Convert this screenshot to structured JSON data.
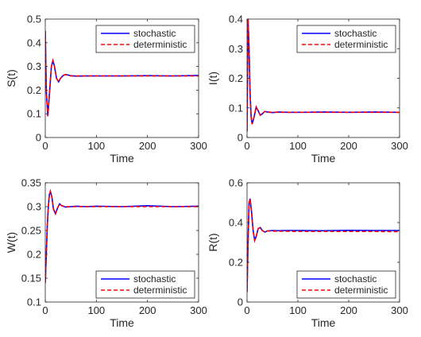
{
  "chart_data": [
    {
      "type": "line",
      "xlabel": "Time",
      "ylabel": "S(t)",
      "xlim": [
        0,
        300
      ],
      "ylim": [
        0,
        0.5
      ],
      "xticks": [
        0,
        100,
        200,
        300
      ],
      "yticks": [
        0,
        0.1,
        0.2,
        0.3,
        0.4,
        0.5
      ],
      "legend_position": "top-right",
      "series": [
        {
          "name": "stochastic",
          "color": "#0000ff",
          "style": "solid",
          "x": [
            0,
            2,
            5,
            8,
            12,
            15,
            18,
            22,
            26,
            30,
            35,
            40,
            50,
            60,
            80,
            100,
            150,
            200,
            250,
            300
          ],
          "y": [
            0.45,
            0.2,
            0.09,
            0.18,
            0.3,
            0.325,
            0.3,
            0.25,
            0.235,
            0.25,
            0.262,
            0.266,
            0.261,
            0.259,
            0.26,
            0.26,
            0.26,
            0.261,
            0.26,
            0.262
          ]
        },
        {
          "name": "deterministic",
          "color": "#ff0000",
          "style": "dashed",
          "x": [
            0,
            2,
            5,
            8,
            12,
            15,
            18,
            22,
            26,
            30,
            35,
            40,
            50,
            60,
            80,
            100,
            150,
            200,
            250,
            300
          ],
          "y": [
            0.45,
            0.2,
            0.09,
            0.18,
            0.3,
            0.325,
            0.3,
            0.25,
            0.235,
            0.25,
            0.262,
            0.266,
            0.26,
            0.26,
            0.26,
            0.26,
            0.26,
            0.26,
            0.26,
            0.26
          ]
        }
      ]
    },
    {
      "type": "line",
      "xlabel": "Time",
      "ylabel": "I(t)",
      "xlim": [
        0,
        300
      ],
      "ylim": [
        0,
        0.4
      ],
      "xticks": [
        0,
        100,
        200,
        300
      ],
      "yticks": [
        0,
        0.1,
        0.2,
        0.3,
        0.4
      ],
      "legend_position": "top-right",
      "series": [
        {
          "name": "stochastic",
          "color": "#0000ff",
          "style": "solid",
          "x": [
            0,
            2,
            4,
            6,
            8,
            10,
            14,
            18,
            22,
            26,
            30,
            35,
            40,
            50,
            60,
            80,
            100,
            150,
            200,
            250,
            300
          ],
          "y": [
            0.02,
            0.4,
            0.3,
            0.15,
            0.07,
            0.045,
            0.07,
            0.103,
            0.09,
            0.075,
            0.08,
            0.088,
            0.086,
            0.084,
            0.086,
            0.085,
            0.085,
            0.086,
            0.085,
            0.086,
            0.085
          ]
        },
        {
          "name": "deterministic",
          "color": "#ff0000",
          "style": "dashed",
          "x": [
            0,
            2,
            4,
            6,
            8,
            10,
            14,
            18,
            22,
            26,
            30,
            35,
            40,
            50,
            60,
            80,
            100,
            150,
            200,
            250,
            300
          ],
          "y": [
            0.02,
            0.4,
            0.3,
            0.15,
            0.07,
            0.045,
            0.07,
            0.103,
            0.09,
            0.075,
            0.08,
            0.088,
            0.086,
            0.085,
            0.085,
            0.085,
            0.085,
            0.085,
            0.085,
            0.085,
            0.085
          ]
        }
      ]
    },
    {
      "type": "line",
      "xlabel": "Time",
      "ylabel": "W(t)",
      "xlim": [
        0,
        300
      ],
      "ylim": [
        0.1,
        0.35
      ],
      "xticks": [
        0,
        100,
        200,
        300
      ],
      "yticks": [
        0.1,
        0.15,
        0.2,
        0.25,
        0.3,
        0.35
      ],
      "legend_position": "bottom-right",
      "series": [
        {
          "name": "stochastic",
          "color": "#0000ff",
          "style": "solid",
          "x": [
            0,
            2,
            4,
            6,
            8,
            10,
            13,
            16,
            20,
            24,
            28,
            32,
            40,
            50,
            60,
            80,
            100,
            150,
            200,
            250,
            300
          ],
          "y": [
            0.14,
            0.2,
            0.26,
            0.3,
            0.325,
            0.332,
            0.32,
            0.295,
            0.285,
            0.297,
            0.306,
            0.302,
            0.299,
            0.3,
            0.301,
            0.3,
            0.301,
            0.3,
            0.302,
            0.3,
            0.301
          ]
        },
        {
          "name": "deterministic",
          "color": "#ff0000",
          "style": "dashed",
          "x": [
            0,
            2,
            4,
            6,
            8,
            10,
            13,
            16,
            20,
            24,
            28,
            32,
            40,
            50,
            60,
            80,
            100,
            150,
            200,
            250,
            300
          ],
          "y": [
            0.14,
            0.2,
            0.26,
            0.3,
            0.325,
            0.332,
            0.32,
            0.295,
            0.285,
            0.297,
            0.306,
            0.302,
            0.3,
            0.3,
            0.3,
            0.3,
            0.3,
            0.3,
            0.3,
            0.3,
            0.3
          ]
        }
      ]
    },
    {
      "type": "line",
      "xlabel": "Time",
      "ylabel": "R(t)",
      "xlim": [
        0,
        300
      ],
      "ylim": [
        0,
        0.6
      ],
      "xticks": [
        0,
        100,
        200,
        300
      ],
      "yticks": [
        0,
        0.2,
        0.4,
        0.6
      ],
      "legend_position": "bottom-right",
      "series": [
        {
          "name": "stochastic",
          "color": "#0000ff",
          "style": "solid",
          "x": [
            0,
            2,
            4,
            6,
            9,
            12,
            15,
            18,
            22,
            26,
            30,
            35,
            40,
            50,
            60,
            80,
            100,
            150,
            200,
            250,
            300
          ],
          "y": [
            0.05,
            0.3,
            0.5,
            0.52,
            0.45,
            0.36,
            0.31,
            0.33,
            0.37,
            0.375,
            0.36,
            0.352,
            0.358,
            0.36,
            0.359,
            0.36,
            0.36,
            0.359,
            0.361,
            0.36,
            0.36
          ]
        },
        {
          "name": "deterministic",
          "color": "#ff0000",
          "style": "dashed",
          "x": [
            0,
            2,
            4,
            6,
            9,
            12,
            15,
            18,
            22,
            26,
            30,
            35,
            40,
            50,
            60,
            80,
            100,
            150,
            200,
            250,
            300
          ],
          "y": [
            0.05,
            0.3,
            0.5,
            0.52,
            0.45,
            0.36,
            0.31,
            0.33,
            0.37,
            0.375,
            0.36,
            0.352,
            0.358,
            0.357,
            0.356,
            0.356,
            0.355,
            0.355,
            0.355,
            0.355,
            0.354
          ]
        }
      ]
    }
  ]
}
